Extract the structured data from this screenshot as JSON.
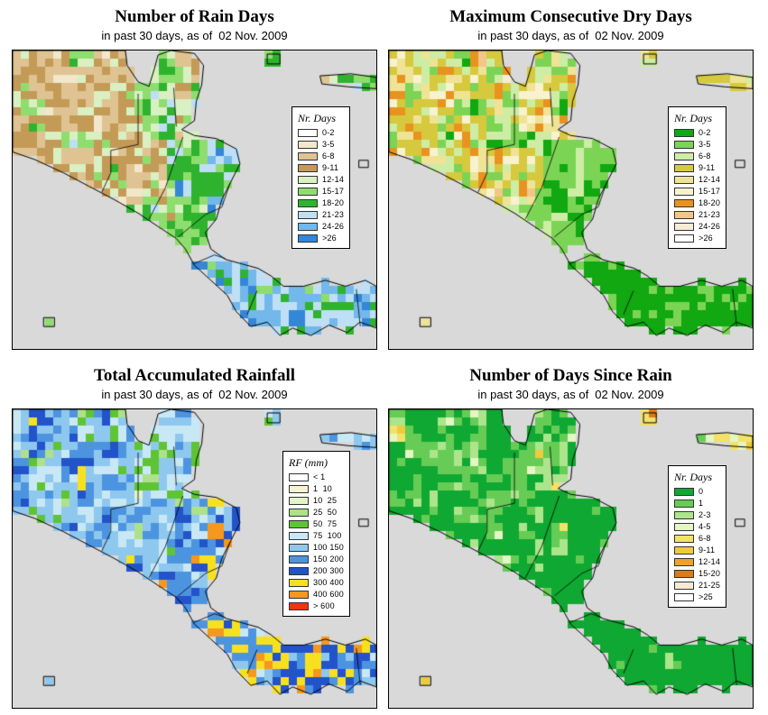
{
  "figure": {
    "background": "#ffffff"
  },
  "map": {
    "water_color": "#d9d9d9",
    "coast_color": "#000000",
    "frame_color": "#000000"
  },
  "panels": [
    {
      "id": "rain-days",
      "title": "Number of Rain Days",
      "subtitle_prefix": "in past 30 days, as of",
      "subtitle_date": "02 Nov. 2009",
      "legend": {
        "title": "Nr. Days",
        "entries": [
          {
            "label": "0-2",
            "color": "#FFFFFF"
          },
          {
            "label": "3-5",
            "color": "#F2E7CB"
          },
          {
            "label": "6-8",
            "color": "#DFC392"
          },
          {
            "label": "9-11",
            "color": "#C49A57"
          },
          {
            "label": "12-14",
            "color": "#D9F0C2"
          },
          {
            "label": "15-17",
            "color": "#8FDD6E"
          },
          {
            "label": "18-20",
            "color": "#2FB32F"
          },
          {
            "label": "21-23",
            "color": "#BFDFF5"
          },
          {
            "label": "24-26",
            "color": "#73B8EA"
          },
          {
            "label": ">26",
            "color": "#3387D6"
          }
        ]
      }
    },
    {
      "id": "dry-days",
      "title": "Maximum Consecutive Dry Days",
      "subtitle_prefix": "in past 30 days, as of",
      "subtitle_date": "02 Nov. 2009",
      "legend": {
        "title": "Nr. Days",
        "entries": [
          {
            "label": "0-2",
            "color": "#11A811"
          },
          {
            "label": "3-5",
            "color": "#7CD455"
          },
          {
            "label": "6-8",
            "color": "#CDEDA5"
          },
          {
            "label": "9-11",
            "color": "#D6C93E"
          },
          {
            "label": "12-14",
            "color": "#EFE395"
          },
          {
            "label": "15-17",
            "color": "#F8F2CF"
          },
          {
            "label": "18-20",
            "color": "#E8931F"
          },
          {
            "label": "21-23",
            "color": "#F2C588"
          },
          {
            "label": "24-26",
            "color": "#F8ECD4"
          },
          {
            "label": ">26",
            "color": "#FFFFFF"
          }
        ]
      }
    },
    {
      "id": "rainfall",
      "title": "Total Accumulated Rainfall",
      "subtitle_prefix": "in past 30 days, as of",
      "subtitle_date": "02 Nov. 2009",
      "legend": {
        "title": "RF (mm)",
        "entries": [
          {
            "label": "< 1",
            "color": "#FFFFFF"
          },
          {
            "label": "1  10",
            "color": "#F8F2D0"
          },
          {
            "label": "10  25",
            "color": "#E2F5C8"
          },
          {
            "label": "25  50",
            "color": "#ADE28A"
          },
          {
            "label": "50  75",
            "color": "#5FC434"
          },
          {
            "label": "75  100",
            "color": "#C9E8F5"
          },
          {
            "label": "100 150",
            "color": "#8FC8EF"
          },
          {
            "label": "150 200",
            "color": "#4D94E0"
          },
          {
            "label": "200 300",
            "color": "#2253C9"
          },
          {
            "label": "300 400",
            "color": "#F7E11F"
          },
          {
            "label": "400 600",
            "color": "#F6981E"
          },
          {
            "label": "> 600",
            "color": "#F2330F"
          }
        ]
      }
    },
    {
      "id": "days-since-rain",
      "title": "Number of Days Since Rain",
      "subtitle_prefix": "in past 30 days, as of",
      "subtitle_date": "02 Nov. 2009",
      "legend": {
        "title": "Nr. Days",
        "entries": [
          {
            "label": "0",
            "color": "#0FA832"
          },
          {
            "label": "1",
            "color": "#66CC55"
          },
          {
            "label": "2-3",
            "color": "#ACE58C"
          },
          {
            "label": "4-5",
            "color": "#E4F6C3"
          },
          {
            "label": "6-8",
            "color": "#F2E26B"
          },
          {
            "label": "9-11",
            "color": "#EFCB3C"
          },
          {
            "label": "12-14",
            "color": "#F0A02E"
          },
          {
            "label": "15-20",
            "color": "#DF7A14"
          },
          {
            "label": "21-25",
            "color": "#F8E9D0"
          },
          {
            "label": ">25",
            "color": "#FFFFFF"
          }
        ]
      }
    }
  ]
}
